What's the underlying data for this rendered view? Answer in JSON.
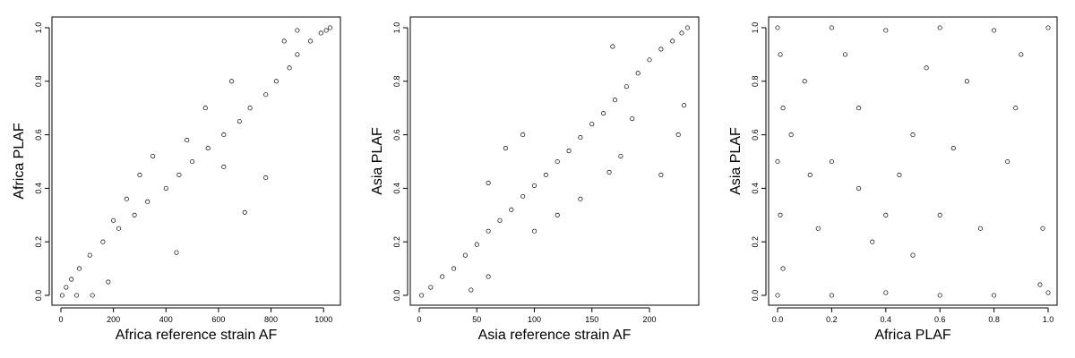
{
  "chart_data": [
    {
      "type": "scatter",
      "xlabel": "Africa reference strain AF",
      "ylabel": "Africa PLAF",
      "xlim": [
        0,
        1030
      ],
      "ylim": [
        0,
        1
      ],
      "xticks": [
        0,
        200,
        400,
        600,
        800,
        1000
      ],
      "yticks": [
        0.0,
        0.2,
        0.4,
        0.6,
        0.8,
        1.0
      ],
      "xtick_labels": [
        "0",
        "200",
        "400",
        "600",
        "800",
        "1000"
      ],
      "ytick_labels": [
        "0.0",
        "0.2",
        "0.4",
        "0.6",
        "0.8",
        "1.0"
      ],
      "marker": "open-circle",
      "grid": false,
      "points": [
        [
          1025,
          1.0
        ],
        [
          1010,
          0.99
        ],
        [
          990,
          0.98
        ],
        [
          950,
          0.95
        ],
        [
          900,
          0.9
        ],
        [
          870,
          0.85
        ],
        [
          820,
          0.8
        ],
        [
          780,
          0.75
        ],
        [
          720,
          0.7
        ],
        [
          680,
          0.65
        ],
        [
          620,
          0.6
        ],
        [
          560,
          0.55
        ],
        [
          500,
          0.5
        ],
        [
          450,
          0.45
        ],
        [
          400,
          0.4
        ],
        [
          330,
          0.35
        ],
        [
          280,
          0.3
        ],
        [
          220,
          0.25
        ],
        [
          160,
          0.2
        ],
        [
          110,
          0.15
        ],
        [
          70,
          0.1
        ],
        [
          40,
          0.06
        ],
        [
          20,
          0.03
        ],
        [
          5,
          0.0
        ],
        [
          60,
          0.0
        ],
        [
          120,
          0.0
        ],
        [
          700,
          0.31
        ],
        [
          780,
          0.44
        ],
        [
          440,
          0.16
        ],
        [
          620,
          0.48
        ],
        [
          550,
          0.7
        ],
        [
          650,
          0.8
        ],
        [
          300,
          0.45
        ],
        [
          350,
          0.52
        ],
        [
          180,
          0.05
        ],
        [
          900,
          0.99
        ],
        [
          850,
          0.95
        ],
        [
          250,
          0.36
        ],
        [
          200,
          0.28
        ],
        [
          480,
          0.58
        ]
      ]
    },
    {
      "type": "scatter",
      "xlabel": "Asia reference strain AF",
      "ylabel": "Asia PLAF",
      "xlim": [
        0,
        235
      ],
      "ylim": [
        0,
        1
      ],
      "xticks": [
        0,
        50,
        100,
        150,
        200
      ],
      "yticks": [
        0.0,
        0.2,
        0.4,
        0.6,
        0.8,
        1.0
      ],
      "xtick_labels": [
        "0",
        "50",
        "100",
        "150",
        "200"
      ],
      "ytick_labels": [
        "0.0",
        "0.2",
        "0.4",
        "0.6",
        "0.8",
        "1.0"
      ],
      "marker": "open-circle",
      "grid": false,
      "points": [
        [
          233,
          1.0
        ],
        [
          228,
          0.98
        ],
        [
          220,
          0.95
        ],
        [
          210,
          0.92
        ],
        [
          200,
          0.88
        ],
        [
          190,
          0.83
        ],
        [
          180,
          0.78
        ],
        [
          170,
          0.73
        ],
        [
          160,
          0.68
        ],
        [
          150,
          0.64
        ],
        [
          140,
          0.59
        ],
        [
          130,
          0.54
        ],
        [
          120,
          0.5
        ],
        [
          110,
          0.45
        ],
        [
          100,
          0.41
        ],
        [
          90,
          0.37
        ],
        [
          80,
          0.32
        ],
        [
          70,
          0.28
        ],
        [
          60,
          0.24
        ],
        [
          50,
          0.19
        ],
        [
          40,
          0.15
        ],
        [
          30,
          0.1
        ],
        [
          20,
          0.07
        ],
        [
          10,
          0.03
        ],
        [
          2,
          0.0
        ],
        [
          45,
          0.02
        ],
        [
          60,
          0.07
        ],
        [
          165,
          0.46
        ],
        [
          168,
          0.93
        ],
        [
          140,
          0.36
        ],
        [
          175,
          0.52
        ],
        [
          225,
          0.6
        ],
        [
          230,
          0.71
        ],
        [
          100,
          0.24
        ],
        [
          120,
          0.3
        ],
        [
          75,
          0.55
        ],
        [
          90,
          0.6
        ],
        [
          60,
          0.42
        ],
        [
          210,
          0.45
        ],
        [
          185,
          0.66
        ]
      ]
    },
    {
      "type": "scatter",
      "xlabel": "Africa PLAF",
      "ylabel": "Asia PLAF",
      "xlim": [
        0,
        1
      ],
      "ylim": [
        0,
        1
      ],
      "xticks": [
        0.0,
        0.2,
        0.4,
        0.6,
        0.8,
        1.0
      ],
      "yticks": [
        0.0,
        0.2,
        0.4,
        0.6,
        0.8,
        1.0
      ],
      "xtick_labels": [
        "0.0",
        "0.2",
        "0.4",
        "0.6",
        "0.8",
        "1.0"
      ],
      "ytick_labels": [
        "0.0",
        "0.2",
        "0.4",
        "0.6",
        "0.8",
        "1.0"
      ],
      "marker": "open-circle",
      "grid": false,
      "points": [
        [
          0.0,
          0.0
        ],
        [
          0.02,
          0.1
        ],
        [
          0.01,
          0.3
        ],
        [
          0.0,
          0.5
        ],
        [
          0.02,
          0.7
        ],
        [
          0.01,
          0.9
        ],
        [
          0.0,
          1.0
        ],
        [
          0.2,
          1.0
        ],
        [
          0.4,
          0.99
        ],
        [
          0.6,
          1.0
        ],
        [
          0.8,
          0.99
        ],
        [
          1.0,
          1.0
        ],
        [
          0.2,
          0.0
        ],
        [
          0.4,
          0.01
        ],
        [
          0.6,
          0.0
        ],
        [
          0.8,
          0.0
        ],
        [
          1.0,
          0.01
        ],
        [
          0.97,
          0.04
        ],
        [
          0.2,
          0.5
        ],
        [
          0.3,
          0.7
        ],
        [
          0.45,
          0.45
        ],
        [
          0.5,
          0.6
        ],
        [
          0.6,
          0.3
        ],
        [
          0.35,
          0.2
        ],
        [
          0.15,
          0.25
        ],
        [
          0.1,
          0.8
        ],
        [
          0.7,
          0.8
        ],
        [
          0.85,
          0.5
        ],
        [
          0.25,
          0.9
        ],
        [
          0.55,
          0.85
        ],
        [
          0.4,
          0.3
        ],
        [
          0.65,
          0.55
        ],
        [
          0.9,
          0.9
        ],
        [
          0.12,
          0.45
        ],
        [
          0.75,
          0.25
        ],
        [
          0.05,
          0.6
        ],
        [
          0.98,
          0.25
        ],
        [
          0.88,
          0.7
        ],
        [
          0.3,
          0.4
        ],
        [
          0.5,
          0.15
        ]
      ]
    }
  ]
}
